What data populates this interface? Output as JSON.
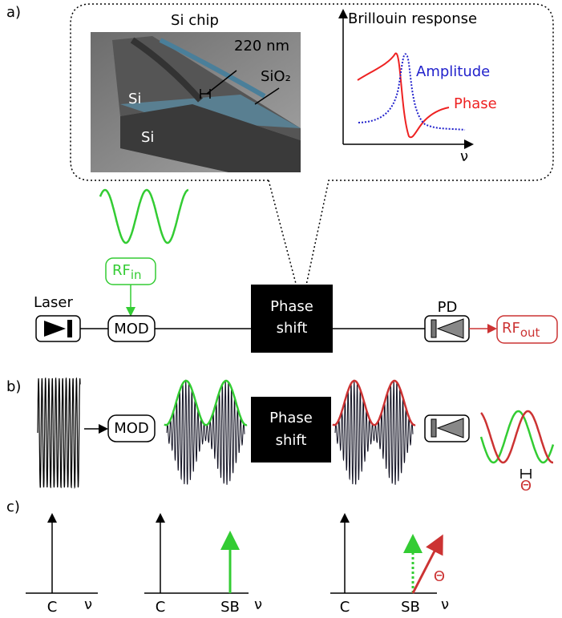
{
  "panel_a": {
    "label": "a)",
    "chip": {
      "title": "Si chip",
      "width_label": "220 nm",
      "si_top": "Si",
      "oxide": "SiO₂",
      "si_bottom": "Si"
    },
    "response": {
      "title": "Brillouin response",
      "amplitude": "Amplitude",
      "phase": "Phase",
      "axis": "ν"
    },
    "rf_in": {
      "main": "RF",
      "sub": "in"
    },
    "laser": "Laser",
    "modulator": "MOD",
    "phase_shift": [
      "Phase",
      "shift"
    ],
    "detector": "PD",
    "rf_out": {
      "main": "RF",
      "sub": "out"
    }
  },
  "panel_b": {
    "label": "b)",
    "modulator": "MOD",
    "phase_shift": [
      "Phase",
      "shift"
    ],
    "angle": "Θ"
  },
  "panel_c": {
    "label": "c)",
    "plots": [
      {
        "carrier": "C",
        "axis": "ν"
      },
      {
        "carrier": "C",
        "sideband": "SB",
        "axis": "ν"
      },
      {
        "carrier": "C",
        "sideband": "SB",
        "axis": "ν",
        "angle": "Θ"
      }
    ]
  }
}
